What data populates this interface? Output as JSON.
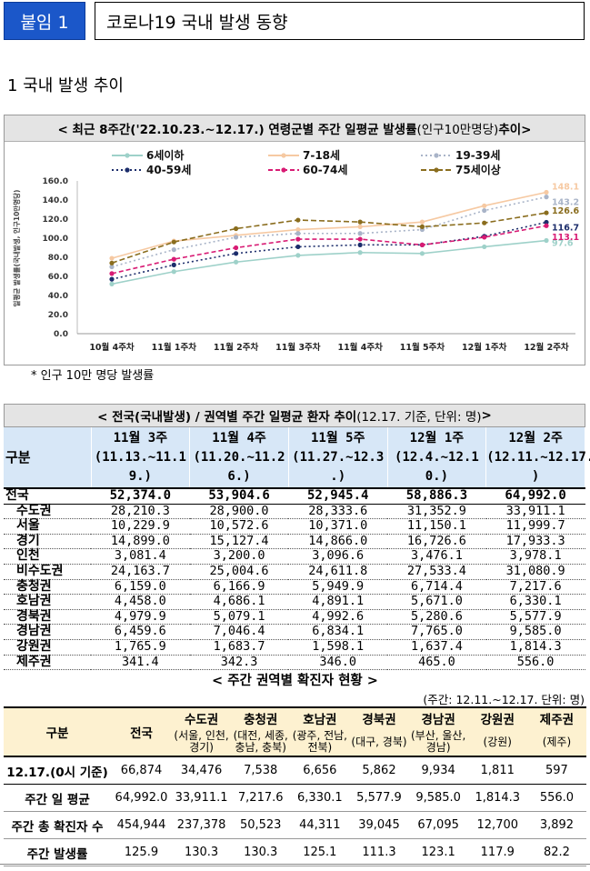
{
  "header": {
    "tag": "붙임 1",
    "title": "코로나19 국내 발생 동향"
  },
  "section": "1  국내 발생 추이",
  "chart_panel": {
    "title_main": "< 최근 8주간('22.10.23.~12.17.) 연령군별 주간 일평균 발생률",
    "title_unit": "(인구10만명당)",
    "title_end": " 추이>"
  },
  "chart_data": {
    "type": "line",
    "ylabel": "일평균 발생률(국내발생, 인구10만명당)",
    "ylim": [
      0,
      160
    ],
    "yticks": [
      "0.0",
      "20.0",
      "40.0",
      "60.0",
      "80.0",
      "100.0",
      "120.0",
      "140.0",
      "160.0"
    ],
    "categories": [
      "10월 4주차",
      "11월 1주차",
      "11월 2주차",
      "11월 3주차",
      "11월 4주차",
      "11월 5주차",
      "12월 1주차",
      "12월 2주차"
    ],
    "series": [
      {
        "name": "6세이하",
        "color": "#9ed1c9",
        "dash": "",
        "end_label": "97.6",
        "values": [
          52,
          65,
          75,
          82,
          85,
          84,
          91,
          97.6
        ]
      },
      {
        "name": "7-18세",
        "color": "#f6c9a2",
        "dash": "",
        "end_label": "148.1",
        "values": [
          79,
          97,
          103,
          109,
          112,
          117,
          134,
          148.1
        ]
      },
      {
        "name": "19-39세",
        "color": "#a9b4c8",
        "dash": "2,3",
        "end_label": "143.2",
        "values": [
          70,
          88,
          101,
          105,
          105,
          109,
          129,
          143.2
        ]
      },
      {
        "name": "40-59세",
        "color": "#1c2d6b",
        "dash": "2,3",
        "end_label": "116.7",
        "values": [
          57,
          72,
          84,
          91,
          93,
          93,
          102,
          116.7
        ]
      },
      {
        "name": "60-74세",
        "color": "#d81b74",
        "dash": "5,3",
        "end_label": "113.1",
        "values": [
          63,
          78,
          90,
          99,
          99,
          93,
          101,
          113.1
        ]
      },
      {
        "name": "75세이상",
        "color": "#8a6d1e",
        "dash": "6,3",
        "end_label": "126.6",
        "values": [
          74,
          96,
          110,
          119,
          117,
          112,
          116,
          126.6
        ]
      }
    ]
  },
  "footnote": "* 인구 10만 명당 발생률",
  "table1": {
    "title_main": "< 전국(국내발생) / 권역별 주간 일평균 환자 추이",
    "title_note": " (12.17. 기준, 단위: 명)",
    "title_end": " >",
    "gubun": "구분",
    "columns": [
      {
        "l1": "11월 3주",
        "l2": "(11.13.~11.1",
        "l3": "9.)"
      },
      {
        "l1": "11월 4주",
        "l2": "(11.20.~11.2",
        "l3": "6.)"
      },
      {
        "l1": "11월 5주",
        "l2": "(11.27.~12.3",
        "l3": ".)"
      },
      {
        "l1": "12월 1주",
        "l2": "(12.4.~12.1",
        "l3": "0.)"
      },
      {
        "l1": "12월 2주",
        "l2": "(12.11.~12.17.",
        "l3": ")"
      }
    ],
    "rows": [
      {
        "label": "전국",
        "v": [
          "52,374.0",
          "53,904.6",
          "52,945.4",
          "58,886.3",
          "64,992.0"
        ]
      },
      {
        "label": "수도권",
        "v": [
          "28,210.3",
          "28,900.0",
          "28,333.6",
          "31,352.9",
          "33,911.1"
        ]
      },
      {
        "label": "서울",
        "v": [
          "10,229.9",
          "10,572.6",
          "10,371.0",
          "11,150.1",
          "11,999.7"
        ]
      },
      {
        "label": "경기",
        "v": [
          "14,899.0",
          "15,127.4",
          "14,866.0",
          "16,726.6",
          "17,933.3"
        ]
      },
      {
        "label": "인천",
        "v": [
          "3,081.4",
          "3,200.0",
          "3,096.6",
          "3,476.1",
          "3,978.1"
        ]
      },
      {
        "label": "비수도권",
        "v": [
          "24,163.7",
          "25,004.6",
          "24,611.8",
          "27,533.4",
          "31,080.9"
        ]
      },
      {
        "label": "충청권",
        "v": [
          "6,159.0",
          "6,166.9",
          "5,949.9",
          "6,714.4",
          "7,217.6"
        ]
      },
      {
        "label": "호남권",
        "v": [
          "4,458.0",
          "4,686.1",
          "4,891.1",
          "5,671.0",
          "6,330.1"
        ]
      },
      {
        "label": "경북권",
        "v": [
          "4,979.9",
          "5,079.1",
          "4,992.6",
          "5,280.6",
          "5,577.9"
        ]
      },
      {
        "label": "경남권",
        "v": [
          "6,459.6",
          "7,046.4",
          "6,834.1",
          "7,765.0",
          "9,585.0"
        ]
      },
      {
        "label": "강원권",
        "v": [
          "1,765.9",
          "1,683.7",
          "1,598.1",
          "1,637.4",
          "1,814.3"
        ]
      },
      {
        "label": "제주권",
        "v": [
          "341.4",
          "342.3",
          "346.0",
          "465.0",
          "556.0"
        ]
      }
    ]
  },
  "table2": {
    "title": "< 주간 권역별 확진자 현황 >",
    "unit": "(주간: 12.11.~12.17. 단위: 명)",
    "gubun": "구분",
    "national": "전국",
    "regions": [
      {
        "name": "수도권",
        "sub": "(서울, 인천, 경기)"
      },
      {
        "name": "충청권",
        "sub": "(대전, 세종, 충남, 충북)"
      },
      {
        "name": "호남권",
        "sub": "(광주, 전남, 전북)"
      },
      {
        "name": "경북권",
        "sub": "(대구, 경북)"
      },
      {
        "name": "경남권",
        "sub": "(부산, 울산, 경남)"
      },
      {
        "name": "강원권",
        "sub": "(강원)"
      },
      {
        "name": "제주권",
        "sub": "(제주)"
      }
    ],
    "rows": [
      {
        "label": "12.17.(0시 기준)",
        "v": [
          "66,874",
          "34,476",
          "7,538",
          "6,656",
          "5,862",
          "9,934",
          "1,811",
          "597"
        ]
      },
      {
        "label": "주간 일 평균",
        "v": [
          "64,992.0",
          "33,911.1",
          "7,217.6",
          "6,330.1",
          "5,577.9",
          "9,585.0",
          "1,814.3",
          "556.0"
        ]
      },
      {
        "label": "주간 총 확진자 수",
        "v": [
          "454,944",
          "237,378",
          "50,523",
          "44,311",
          "39,045",
          "67,095",
          "12,700",
          "3,892"
        ]
      },
      {
        "label": "주간 발생률",
        "v": [
          "125.9",
          "130.3",
          "130.3",
          "125.1",
          "111.3",
          "123.1",
          "117.9",
          "82.2"
        ]
      }
    ]
  }
}
